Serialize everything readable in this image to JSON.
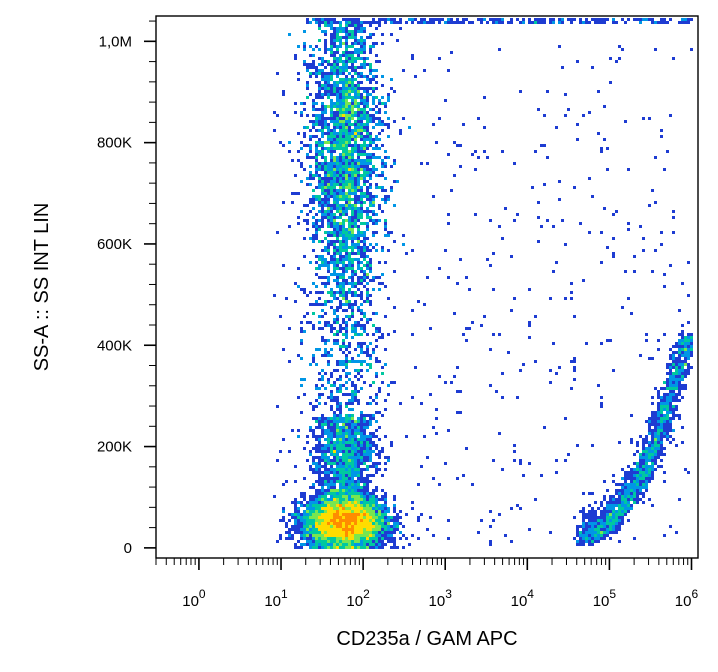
{
  "chart_data": {
    "type": "scatter",
    "subtype": "flow cytometry density dot plot",
    "title": "",
    "xlabel": "CD235a  /  GAM  APC",
    "ylabel": "SS-A :: SS INT LIN",
    "x_scale": "log",
    "y_scale": "linear",
    "xlim": [
      0.3,
      1200000
    ],
    "ylim": [
      -20000,
      1050000
    ],
    "x_ticks": [
      {
        "value": 1,
        "base": "10",
        "exp": "0"
      },
      {
        "value": 10,
        "base": "10",
        "exp": "1"
      },
      {
        "value": 100,
        "base": "10",
        "exp": "2"
      },
      {
        "value": 1000,
        "base": "10",
        "exp": "3"
      },
      {
        "value": 10000,
        "base": "10",
        "exp": "4"
      },
      {
        "value": 100000,
        "base": "10",
        "exp": "5"
      },
      {
        "value": 1000000,
        "base": "10",
        "exp": "6"
      }
    ],
    "y_ticks": [
      {
        "value": 0,
        "label": "0"
      },
      {
        "value": 200000,
        "label": "200K"
      },
      {
        "value": 400000,
        "label": "400K"
      },
      {
        "value": 600000,
        "label": "600K"
      },
      {
        "value": 800000,
        "label": "800K"
      },
      {
        "value": 1000000,
        "label": "1,0M"
      }
    ],
    "grid": false,
    "legend": "none",
    "density_colors": [
      "#00008b",
      "#1e3cd2",
      "#0096e6",
      "#00c8a0",
      "#78e650",
      "#ffdc00",
      "#ff8c00",
      "#e60000"
    ],
    "populations": [
      {
        "label": "CD235a-negative, high side scatter (vertical streak)",
        "x_center": 60,
        "x_spread_log10": 0.22,
        "y_range": [
          150000,
          1040000
        ],
        "peak_density_y": 780000
      },
      {
        "label": "CD235a-negative, low side scatter (dense cluster)",
        "x_center": 60,
        "x_spread_log10": 0.25,
        "y_center": 50000,
        "y_spread": 25000
      },
      {
        "label": "CD235a-positive (curved population)",
        "x_range": [
          40000,
          1000000
        ],
        "y_range": [
          0,
          420000
        ]
      }
    ]
  }
}
